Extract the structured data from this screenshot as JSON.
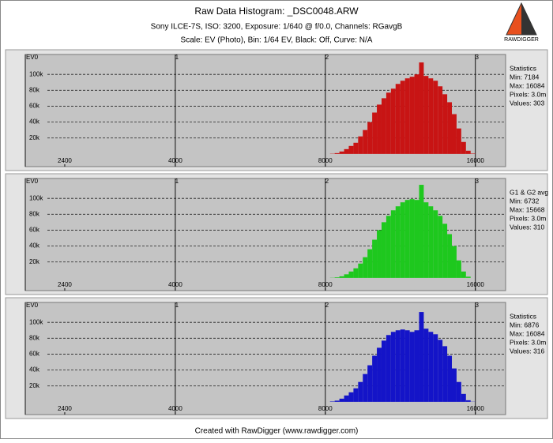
{
  "header": {
    "title": "Raw Data Histogram: _DSC0048.ARW",
    "subtitle_lines": [
      "Sony ILCE-7S, ISO: 3200, Exposure: 1/640 @ f/0.0, Channels: RGavgB",
      "Scale: EV (Photo), Bin: 1/64 EV, Black: Off, Curve: N/A"
    ]
  },
  "logo": {
    "text": "RAWDIGGER"
  },
  "footer": "Created with RawDigger (www.rawdigger.com)",
  "chart_data": [
    {
      "type": "histogram",
      "color": "#c81414",
      "log_x": true,
      "grid": true,
      "stats": [
        "Statistics",
        "Min: 7184",
        "Max: 16084",
        "Pixels: 3.0m",
        "Values: 303"
      ],
      "xlim": [
        2000,
        18400
      ],
      "ylim": [
        -16000,
        125000
      ],
      "xticks": [
        2400,
        4000,
        8000,
        16000
      ],
      "x2ticks": [
        {
          "value": 2000,
          "label": "EV0"
        },
        {
          "value": 4000,
          "label": "1"
        },
        {
          "value": 8000,
          "label": "2"
        },
        {
          "value": 16000,
          "label": "3"
        }
      ],
      "yticks": [
        {
          "value": 20000,
          "label": "20k"
        },
        {
          "value": 40000,
          "label": "40k"
        },
        {
          "value": 60000,
          "label": "60k"
        },
        {
          "value": 80000,
          "label": "80k"
        },
        {
          "value": 100000,
          "label": "100k"
        }
      ],
      "bins": [
        8000,
        8175,
        8354,
        8537,
        8724,
        8915,
        9110,
        9309,
        9513,
        9721,
        9934,
        10151,
        10373,
        10600,
        10832,
        11069,
        11314,
        11561,
        11815,
        12073,
        12337,
        12607,
        12883,
        13165,
        13454,
        13748,
        14049,
        14356,
        14670,
        14991,
        15319,
        15655,
        16000
      ],
      "values": [
        0,
        300,
        1000,
        3000,
        6000,
        10000,
        14000,
        22000,
        30000,
        40000,
        52000,
        62000,
        70000,
        77000,
        82000,
        88000,
        92000,
        95000,
        97000,
        100000,
        115000,
        98000,
        95000,
        92000,
        85000,
        75000,
        65000,
        50000,
        32000,
        15000,
        4000,
        500
      ]
    },
    {
      "type": "histogram",
      "color": "#1ec81e",
      "log_x": true,
      "grid": true,
      "stats": [
        "G1 & G2 avg",
        "Min: 6732",
        "Max: 15668",
        "Pixels: 3.0m",
        "Values: 310"
      ],
      "xlim": [
        2000,
        18400
      ],
      "ylim": [
        -16000,
        125000
      ],
      "xticks": [
        2400,
        4000,
        8000,
        16000
      ],
      "x2ticks": [
        {
          "value": 2000,
          "label": "EV0"
        },
        {
          "value": 4000,
          "label": "1"
        },
        {
          "value": 8000,
          "label": "2"
        },
        {
          "value": 16000,
          "label": "3"
        }
      ],
      "yticks": [
        {
          "value": 20000,
          "label": "20k"
        },
        {
          "value": 40000,
          "label": "40k"
        },
        {
          "value": 60000,
          "label": "60k"
        },
        {
          "value": 80000,
          "label": "80k"
        },
        {
          "value": 100000,
          "label": "100k"
        }
      ],
      "bins": [
        8000,
        8175,
        8354,
        8537,
        8724,
        8915,
        9110,
        9309,
        9513,
        9721,
        9934,
        10151,
        10373,
        10600,
        10832,
        11069,
        11314,
        11561,
        11815,
        12073,
        12337,
        12607,
        12883,
        13165,
        13454,
        13748,
        14049,
        14356,
        14670,
        14991,
        15319,
        15655,
        16000
      ],
      "values": [
        0,
        200,
        700,
        2000,
        4500,
        8000,
        12000,
        18000,
        26000,
        36000,
        48000,
        60000,
        70000,
        78000,
        85000,
        90000,
        95000,
        98000,
        99000,
        98000,
        117000,
        95000,
        90000,
        85000,
        78000,
        68000,
        55000,
        40000,
        22000,
        8000,
        1500,
        0
      ]
    },
    {
      "type": "histogram",
      "color": "#1414c8",
      "log_x": true,
      "grid": true,
      "stats": [
        "Statistics",
        "Min: 6876",
        "Max: 16084",
        "Pixels: 3.0m",
        "Values: 316"
      ],
      "xlim": [
        2000,
        18400
      ],
      "ylim": [
        -16000,
        125000
      ],
      "xticks": [
        2400,
        4000,
        8000,
        16000
      ],
      "x2ticks": [
        {
          "value": 2000,
          "label": "EV0"
        },
        {
          "value": 4000,
          "label": "1"
        },
        {
          "value": 8000,
          "label": "2"
        },
        {
          "value": 16000,
          "label": "3"
        }
      ],
      "yticks": [
        {
          "value": 20000,
          "label": "20k"
        },
        {
          "value": 40000,
          "label": "40k"
        },
        {
          "value": 60000,
          "label": "60k"
        },
        {
          "value": 80000,
          "label": "80k"
        },
        {
          "value": 100000,
          "label": "100k"
        }
      ],
      "bins": [
        8000,
        8175,
        8354,
        8537,
        8724,
        8915,
        9110,
        9309,
        9513,
        9721,
        9934,
        10151,
        10373,
        10600,
        10832,
        11069,
        11314,
        11561,
        11815,
        12073,
        12337,
        12607,
        12883,
        13165,
        13454,
        13748,
        14049,
        14356,
        14670,
        14991,
        15319,
        15655,
        16000
      ],
      "values": [
        0,
        500,
        1500,
        4000,
        8000,
        12000,
        17000,
        25000,
        35000,
        46000,
        58000,
        68000,
        77000,
        84000,
        88000,
        90000,
        91000,
        90000,
        88000,
        90000,
        113000,
        92000,
        88000,
        85000,
        78000,
        70000,
        58000,
        42000,
        25000,
        10000,
        2000,
        200
      ]
    }
  ]
}
